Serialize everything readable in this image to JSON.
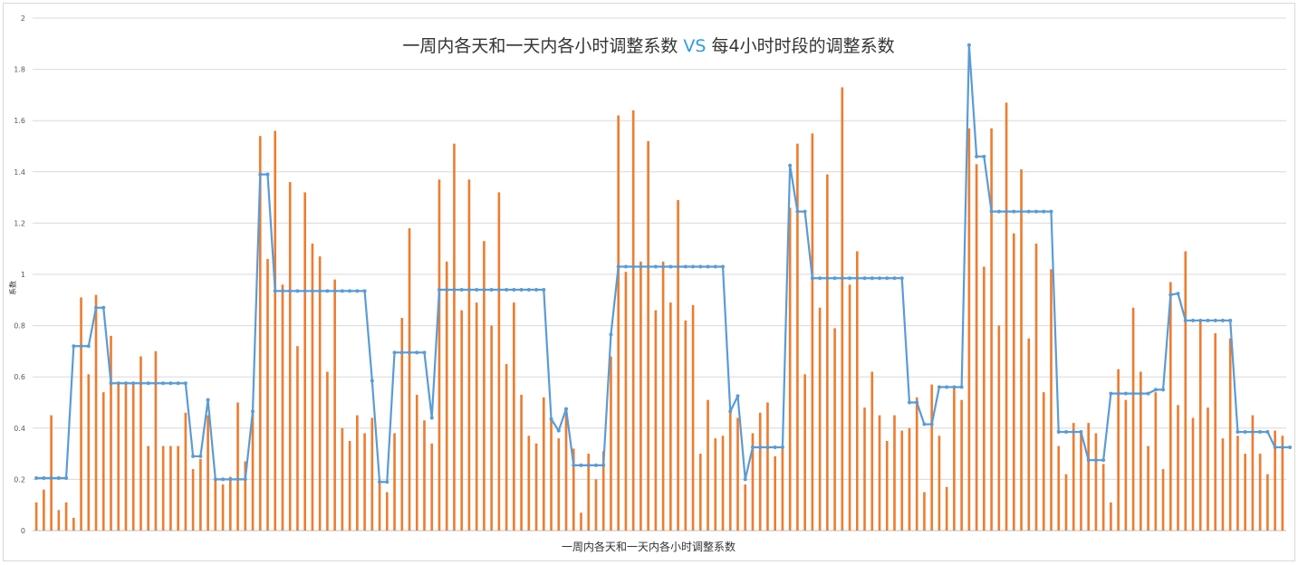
{
  "chart_data": {
    "type": "bar",
    "title_parts": [
      "一周内各天和一天内各小时调整系数 ",
      "VS",
      " 每4小时时段的调整系数"
    ],
    "xlabel": "一周内各天和一天内各小时调整系数",
    "ylabel": "系数",
    "ylim": [
      0,
      2
    ],
    "yticks": [
      "0",
      "0.2",
      "0.4",
      "0.6",
      "0.8",
      "1",
      "1.2",
      "1.4",
      "1.6",
      "1.8",
      "2"
    ],
    "grid": true,
    "legend": "none",
    "colors": {
      "bar": "#ed7d31",
      "line": "#5b9bd5",
      "grid": "#d9d9d9",
      "vs": "#2e9be6"
    },
    "series": [
      {
        "kind": "bar",
        "values": [
          0.11,
          0.16,
          0.45,
          0.08,
          0.11,
          0.05,
          0.91,
          0.61,
          0.92,
          0.54,
          0.76,
          0.57,
          0.58,
          0.57,
          0.68,
          0.33,
          0.7,
          0.33,
          0.33,
          0.33,
          0.46,
          0.24,
          0.28,
          0.45,
          0.2,
          0.18,
          0.21,
          0.5,
          0.27,
          0.46,
          1.54,
          1.06,
          1.56,
          0.96,
          1.36,
          0.72,
          1.32,
          1.12,
          1.07,
          0.62,
          0.98,
          0.4,
          0.35,
          0.45,
          0.38,
          0.44,
          0.19,
          0.15,
          0.38,
          0.83,
          1.18,
          0.53,
          0.43,
          0.34,
          1.37,
          1.05,
          1.51,
          0.86,
          1.37,
          0.89,
          1.13,
          0.8,
          1.32,
          0.65,
          0.89,
          0.53,
          0.37,
          0.34,
          0.52,
          0.43,
          0.36,
          0.47,
          0.32,
          0.07,
          0.3,
          0.2,
          0.31,
          0.68,
          1.62,
          1.01,
          1.64,
          1.05,
          1.52,
          0.86,
          1.05,
          0.89,
          1.29,
          0.82,
          0.88,
          0.3,
          0.51,
          0.36,
          0.37,
          0.47,
          0.44,
          0.18,
          0.38,
          0.46,
          0.5,
          0.29,
          0.33,
          1.26,
          1.51,
          0.61,
          1.55,
          0.87,
          1.39,
          0.79,
          1.73,
          0.96,
          1.09,
          0.48,
          0.62,
          0.45,
          0.35,
          0.45,
          0.39,
          0.4,
          0.52,
          0.15,
          0.57,
          0.37,
          0.17,
          0.56,
          0.51,
          1.57,
          1.43,
          1.03,
          1.57,
          0.8,
          1.67,
          1.16,
          1.41,
          0.75,
          1.12,
          0.54,
          1.02,
          0.33,
          0.22,
          0.42,
          0.38,
          0.42,
          0.38,
          0.26,
          0.11,
          0.63,
          0.51,
          0.87,
          0.62,
          0.33,
          0.54,
          0.24,
          0.97,
          0.49,
          1.09,
          0.44,
          0.82,
          0.48,
          0.77,
          0.36,
          0.75,
          0.37,
          0.3,
          0.45,
          0.3,
          0.22,
          0.39,
          0.37
        ]
      },
      {
        "kind": "line",
        "values": [
          0.205,
          0.205,
          0.205,
          0.205,
          0.205,
          0.72,
          0.72,
          0.72,
          0.87,
          0.87,
          0.575,
          0.575,
          0.575,
          0.575,
          0.575,
          0.575,
          0.575,
          0.575,
          0.575,
          0.575,
          0.575,
          0.29,
          0.29,
          0.51,
          0.2,
          0.2,
          0.2,
          0.2,
          0.2,
          0.465,
          1.39,
          1.39,
          0.935,
          0.935,
          0.935,
          0.935,
          0.935,
          0.935,
          0.935,
          0.935,
          0.935,
          0.935,
          0.935,
          0.935,
          0.935,
          0.585,
          0.19,
          0.19,
          0.695,
          0.695,
          0.695,
          0.695,
          0.695,
          0.44,
          0.94,
          0.94,
          0.94,
          0.94,
          0.94,
          0.94,
          0.94,
          0.94,
          0.94,
          0.94,
          0.94,
          0.94,
          0.94,
          0.94,
          0.94,
          0.435,
          0.39,
          0.475,
          0.255,
          0.255,
          0.255,
          0.255,
          0.255,
          0.765,
          1.03,
          1.03,
          1.03,
          1.03,
          1.03,
          1.03,
          1.03,
          1.03,
          1.03,
          1.03,
          1.03,
          1.03,
          1.03,
          1.03,
          1.03,
          0.465,
          0.525,
          0.2,
          0.325,
          0.325,
          0.325,
          0.325,
          0.325,
          1.425,
          1.245,
          1.245,
          0.985,
          0.985,
          0.985,
          0.985,
          0.985,
          0.985,
          0.985,
          0.985,
          0.985,
          0.985,
          0.985,
          0.985,
          0.985,
          0.5,
          0.5,
          0.415,
          0.415,
          0.56,
          0.56,
          0.56,
          0.56,
          1.895,
          1.46,
          1.46,
          1.245,
          1.245,
          1.245,
          1.245,
          1.245,
          1.245,
          1.245,
          1.245,
          1.245,
          0.385,
          0.385,
          0.385,
          0.385,
          0.275,
          0.275,
          0.275,
          0.535,
          0.535,
          0.535,
          0.535,
          0.535,
          0.535,
          0.55,
          0.55,
          0.92,
          0.925,
          0.82,
          0.82,
          0.82,
          0.82,
          0.82,
          0.82,
          0.82,
          0.385,
          0.385,
          0.385,
          0.385,
          0.385,
          0.325,
          0.325,
          0.325
        ]
      }
    ]
  }
}
